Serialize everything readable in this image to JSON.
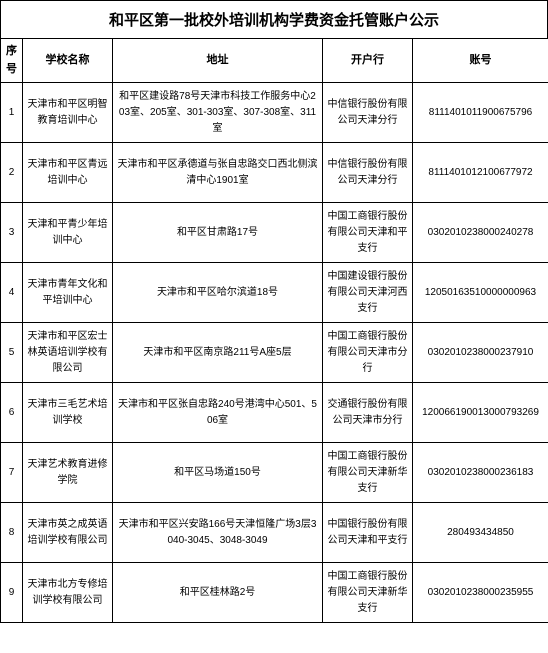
{
  "title": "和平区第一批校外培训机构学费资金托管账户公示",
  "headers": {
    "index": "序号",
    "name": "学校名称",
    "address": "地址",
    "bank": "开户行",
    "account": "账号"
  },
  "rows": [
    {
      "idx": "1",
      "name": "天津市和平区明智教育培训中心",
      "address": "和平区建设路78号天津市科技工作服务中心203室、205室、301-303室、307-308室、311室",
      "bank": "中信银行股份有限公司天津分行",
      "account": "8111401011900675796"
    },
    {
      "idx": "2",
      "name": "天津市和平区青远培训中心",
      "address": "天津市和平区承德道与张自忠路交口西北侧滨清中心1901室",
      "bank": "中信银行股份有限公司天津分行",
      "account": "8111401012100677972"
    },
    {
      "idx": "3",
      "name": "天津和平青少年培训中心",
      "address": "和平区甘肃路17号",
      "bank": "中国工商银行股份有限公司天津和平支行",
      "account": "0302010238000240278"
    },
    {
      "idx": "4",
      "name": "天津市青年文化和平培训中心",
      "address": "天津市和平区哈尔滨道18号",
      "bank": "中国建设银行股份有限公司天津河西支行",
      "account": "12050163510000000963"
    },
    {
      "idx": "5",
      "name": "天津市和平区宏士林英语培训学校有限公司",
      "address": "天津市和平区南京路211号A座5层",
      "bank": "中国工商银行股份有限公司天津市分行",
      "account": "0302010238000237910"
    },
    {
      "idx": "6",
      "name": "天津市三毛艺术培训学校",
      "address": "天津市和平区张自忠路240号港湾中心501、506室",
      "bank": "交通银行股份有限公司天津市分行",
      "account": "120066190013000793269"
    },
    {
      "idx": "7",
      "name": "天津艺术教育进修学院",
      "address": "和平区马场道150号",
      "bank": "中国工商银行股份有限公司天津新华支行",
      "account": "0302010238000236183"
    },
    {
      "idx": "8",
      "name": "天津市英之成英语培训学校有限公司",
      "address": "天津市和平区兴安路166号天津恒隆广场3层3040-3045、3048-3049",
      "bank": "中国银行股份有限公司天津和平支行",
      "account": "280493434850"
    },
    {
      "idx": "9",
      "name": "天津市北方专修培训学校有限公司",
      "address": "和平区桂林路2号",
      "bank": "中国工商银行股份有限公司天津新华支行",
      "account": "0302010238000235955"
    }
  ]
}
